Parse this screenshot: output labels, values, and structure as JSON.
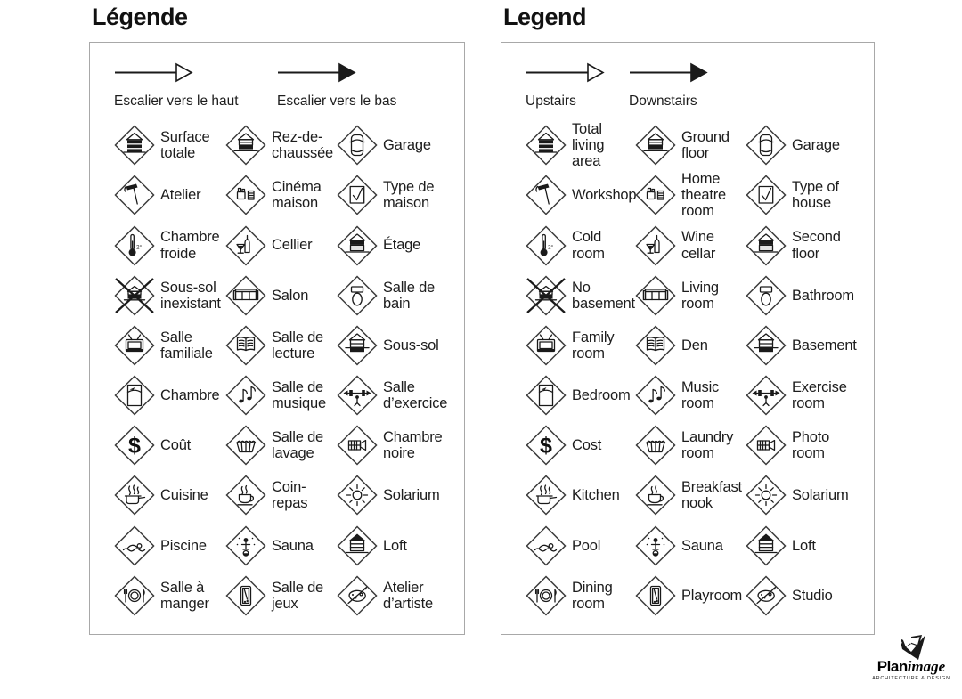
{
  "panels": [
    {
      "id": "french",
      "title": "Légende",
      "arrows": [
        {
          "label": "Escalier vers le haut",
          "style": "outline"
        },
        {
          "label": "Escalier vers le bas",
          "style": "filled"
        }
      ],
      "items": [
        {
          "icon": "total-area",
          "label": "Surface totale"
        },
        {
          "icon": "ground-floor",
          "label": "Rez-de-chaussée"
        },
        {
          "icon": "garage",
          "label": "Garage"
        },
        {
          "icon": "workshop",
          "label": "Atelier"
        },
        {
          "icon": "home-theatre",
          "label": "Cinéma maison"
        },
        {
          "icon": "type-of-house",
          "label": "Type de maison"
        },
        {
          "icon": "cold-room",
          "label": "Chambre froide"
        },
        {
          "icon": "wine-cellar",
          "label": "Cellier"
        },
        {
          "icon": "second-floor",
          "label": "Étage"
        },
        {
          "icon": "no-basement",
          "label": "Sous-sol inexistant"
        },
        {
          "icon": "living-room",
          "label": "Salon"
        },
        {
          "icon": "bathroom",
          "label": "Salle de bain"
        },
        {
          "icon": "family-room",
          "label": "Salle familiale"
        },
        {
          "icon": "den",
          "label": "Salle de lecture"
        },
        {
          "icon": "basement",
          "label": "Sous-sol"
        },
        {
          "icon": "bedroom",
          "label": "Chambre"
        },
        {
          "icon": "music-room",
          "label": "Salle de musique"
        },
        {
          "icon": "exercise-room",
          "label": "Salle d’exercice"
        },
        {
          "icon": "cost",
          "label": "Coût"
        },
        {
          "icon": "laundry-room",
          "label": "Salle de lavage"
        },
        {
          "icon": "photo-room",
          "label": "Chambre noire"
        },
        {
          "icon": "kitchen",
          "label": "Cuisine"
        },
        {
          "icon": "breakfast-nook",
          "label": "Coin-repas"
        },
        {
          "icon": "solarium",
          "label": "Solarium"
        },
        {
          "icon": "pool",
          "label": "Piscine"
        },
        {
          "icon": "sauna",
          "label": "Sauna"
        },
        {
          "icon": "loft",
          "label": "Loft"
        },
        {
          "icon": "dining-room",
          "label": "Salle à manger"
        },
        {
          "icon": "playroom",
          "label": "Salle de jeux"
        },
        {
          "icon": "studio",
          "label": "Atelier d’artiste"
        }
      ]
    },
    {
      "id": "english",
      "title": "Legend",
      "arrows": [
        {
          "label": "Upstairs",
          "style": "outline"
        },
        {
          "label": "Downstairs",
          "style": "filled"
        }
      ],
      "items": [
        {
          "icon": "total-area",
          "label": "Total living area"
        },
        {
          "icon": "ground-floor",
          "label": "Ground floor"
        },
        {
          "icon": "garage",
          "label": "Garage"
        },
        {
          "icon": "workshop",
          "label": "Workshop"
        },
        {
          "icon": "home-theatre",
          "label": "Home theatre room"
        },
        {
          "icon": "type-of-house",
          "label": "Type of house"
        },
        {
          "icon": "cold-room",
          "label": "Cold room"
        },
        {
          "icon": "wine-cellar",
          "label": "Wine cellar"
        },
        {
          "icon": "second-floor",
          "label": "Second floor"
        },
        {
          "icon": "no-basement",
          "label": "No basement"
        },
        {
          "icon": "living-room",
          "label": "Living room"
        },
        {
          "icon": "bathroom",
          "label": "Bathroom"
        },
        {
          "icon": "family-room",
          "label": "Family room"
        },
        {
          "icon": "den",
          "label": "Den"
        },
        {
          "icon": "basement",
          "label": "Basement"
        },
        {
          "icon": "bedroom",
          "label": "Bedroom"
        },
        {
          "icon": "music-room",
          "label": "Music room"
        },
        {
          "icon": "exercise-room",
          "label": "Exercise room"
        },
        {
          "icon": "cost",
          "label": "Cost"
        },
        {
          "icon": "laundry-room",
          "label": "Laundry room"
        },
        {
          "icon": "photo-room",
          "label": "Photo room"
        },
        {
          "icon": "kitchen",
          "label": "Kitchen"
        },
        {
          "icon": "breakfast-nook",
          "label": "Breakfast nook"
        },
        {
          "icon": "solarium",
          "label": "Solarium"
        },
        {
          "icon": "pool",
          "label": "Pool"
        },
        {
          "icon": "sauna",
          "label": "Sauna"
        },
        {
          "icon": "loft",
          "label": "Loft"
        },
        {
          "icon": "dining-room",
          "label": "Dining room"
        },
        {
          "icon": "playroom",
          "label": "Playroom"
        },
        {
          "icon": "studio",
          "label": "Studio"
        }
      ]
    }
  ],
  "logo": {
    "brand_bold": "Plan",
    "brand_italic": "image",
    "tagline": "ARCHITECTURE & DESIGN"
  }
}
